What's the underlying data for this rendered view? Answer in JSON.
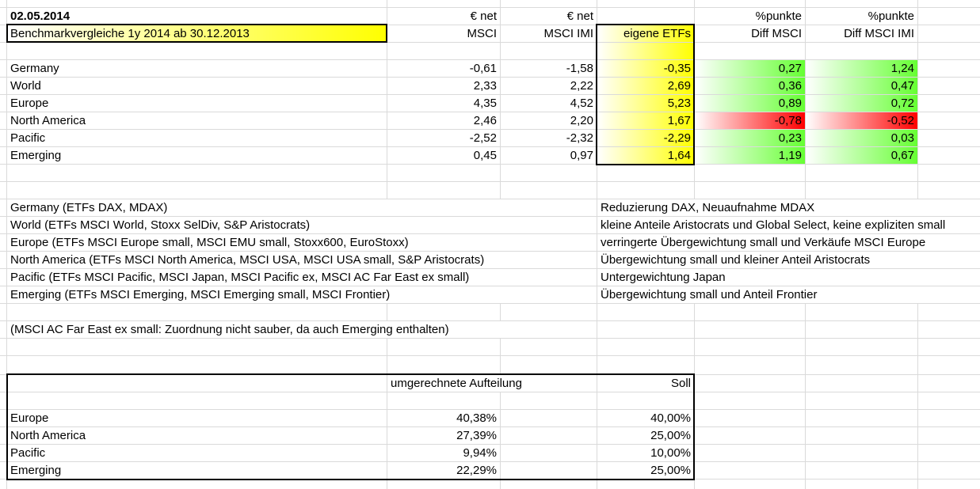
{
  "header": {
    "date": "02.05.2014",
    "title": "Benchmarkvergleiche 1y 2014 ab 30.12.2013",
    "col_msci_top": "€ net",
    "col_msci": "MSCI",
    "col_imi_top": "€ net",
    "col_imi": "MSCI IMI",
    "col_etf": "eigene ETFs",
    "col_diff_msci_top": "%punkte",
    "col_diff_msci": "Diff MSCI",
    "col_diff_imi_top": "%punkte",
    "col_diff_imi": "Diff MSCI IMI"
  },
  "benchmark_rows": [
    {
      "region": "Germany",
      "msci": "-0,61",
      "imi": "-1,58",
      "etf": "-0,35",
      "diff_msci": "0,27",
      "diff_imi": "1,24"
    },
    {
      "region": "World",
      "msci": "2,33",
      "imi": "2,22",
      "etf": "2,69",
      "diff_msci": "0,36",
      "diff_imi": "0,47"
    },
    {
      "region": "Europe",
      "msci": "4,35",
      "imi": "4,52",
      "etf": "5,23",
      "diff_msci": "0,89",
      "diff_imi": "0,72"
    },
    {
      "region": "North America",
      "msci": "2,46",
      "imi": "2,20",
      "etf": "1,67",
      "diff_msci": "-0,78",
      "diff_imi": "-0,52"
    },
    {
      "region": "Pacific",
      "msci": "-2,52",
      "imi": "-2,32",
      "etf": "-2,29",
      "diff_msci": "0,23",
      "diff_imi": "0,03"
    },
    {
      "region": "Emerging",
      "msci": "0,45",
      "imi": "0,97",
      "etf": "1,64",
      "diff_msci": "1,19",
      "diff_imi": "0,67"
    }
  ],
  "descriptions": [
    {
      "label": "Germany (ETFs DAX, MDAX)",
      "comment": "Reduzierung DAX, Neuaufnahme MDAX"
    },
    {
      "label": "World (ETFs MSCI World, Stoxx SelDiv, S&P Aristocrats)",
      "comment": "kleine Anteile Aristocrats und Global Select, keine expliziten small"
    },
    {
      "label": "Europe (ETFs MSCI Europe small, MSCI EMU small, Stoxx600, EuroStoxx)",
      "comment": "verringerte Übergewichtung small und Verkäufe MSCI Europe"
    },
    {
      "label": "North America (ETFs MSCI North America, MSCI USA, MSCI USA small, S&P Aristocrats)",
      "comment": "Übergewichtung small und kleiner Anteil Aristocrats"
    },
    {
      "label": "Pacific (ETFs MSCI Pacific, MSCI Japan, MSCI Pacific ex, MSCI AC  Far East ex small)",
      "comment": "Untergewichtung Japan"
    },
    {
      "label": "Emerging (ETFs MSCI Emerging, MSCI Emerging small, MSCI Frontier)",
      "comment": "Übergewichtung small und Anteil Frontier"
    }
  ],
  "note": "(MSCI AC Far East ex small: Zuordnung nicht sauber, da auch Emerging enthalten)",
  "allocation": {
    "col_actual": "umgerechnete Aufteilung",
    "col_target": "Soll",
    "rows": [
      {
        "region": "Europe",
        "actual": "40,38%",
        "target": "40,00%"
      },
      {
        "region": "North America",
        "actual": "27,39%",
        "target": "25,00%"
      },
      {
        "region": "Pacific",
        "actual": "9,94%",
        "target": "10,00%"
      },
      {
        "region": "Emerging",
        "actual": "22,29%",
        "target": "25,00%"
      }
    ]
  },
  "colors": {
    "highlight_yellow": "#ffff00",
    "positive_green": "#66ff33",
    "negative_red": "#ff0000"
  }
}
